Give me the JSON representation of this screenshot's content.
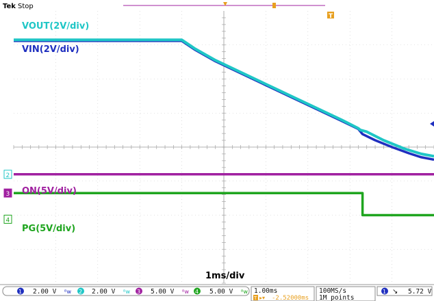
{
  "header": {
    "brand": "Tek",
    "state": "Stop"
  },
  "colors": {
    "ch1": "#1f2fbf",
    "ch2": "#1fc6c6",
    "ch3": "#a020a0",
    "ch4": "#1fa51f",
    "trigger": "#e8a020",
    "grid": "#c8c8c8"
  },
  "chart_data": {
    "type": "line",
    "title": "",
    "x_unit": "ms",
    "x_range_ms": [
      0,
      10
    ],
    "y_range_div": [
      -4,
      4
    ],
    "series": [
      {
        "name": "VOUT(2V/div)",
        "channel": 2,
        "color": "#1fc6c6",
        "points_ms_div": [
          [
            0,
            3.15
          ],
          [
            4.0,
            3.15
          ],
          [
            4.3,
            2.9
          ],
          [
            4.8,
            2.55
          ],
          [
            5.4,
            2.2
          ],
          [
            6.0,
            1.85
          ],
          [
            6.6,
            1.5
          ],
          [
            7.2,
            1.15
          ],
          [
            7.8,
            0.8
          ],
          [
            8.2,
            0.55
          ],
          [
            8.25,
            0.5
          ],
          [
            8.4,
            0.45
          ],
          [
            8.8,
            0.2
          ],
          [
            9.3,
            -0.05
          ],
          [
            9.7,
            -0.2
          ],
          [
            10,
            -0.27
          ]
        ]
      },
      {
        "name": "VIN(2V/div)",
        "channel": 1,
        "color": "#1f2fbf",
        "points_ms_div": [
          [
            0,
            3.12
          ],
          [
            4.0,
            3.12
          ],
          [
            4.3,
            2.87
          ],
          [
            4.8,
            2.52
          ],
          [
            5.4,
            2.17
          ],
          [
            6.0,
            1.82
          ],
          [
            6.6,
            1.47
          ],
          [
            7.2,
            1.12
          ],
          [
            7.8,
            0.77
          ],
          [
            8.2,
            0.53
          ],
          [
            8.3,
            0.38
          ],
          [
            8.6,
            0.2
          ],
          [
            9.0,
            0
          ],
          [
            9.4,
            -0.18
          ],
          [
            9.7,
            -0.3
          ],
          [
            10,
            -0.37
          ]
        ]
      },
      {
        "name": "ON(5V/div)",
        "channel": 3,
        "color": "#a020a0",
        "points_ms_div": [
          [
            0,
            -0.8
          ],
          [
            10,
            -0.8
          ]
        ]
      },
      {
        "name": "PG(5V/div)",
        "channel": 4,
        "color": "#1fa51f",
        "points_ms_div": [
          [
            0,
            -1.35
          ],
          [
            8.3,
            -1.35
          ],
          [
            8.3,
            -2.0
          ],
          [
            10,
            -2.0
          ]
        ]
      }
    ],
    "timebase_label": "1ms/div",
    "channel_scales": [
      {
        "ch": "1",
        "scale": "2.00 V"
      },
      {
        "ch": "2",
        "scale": "2.00 V"
      },
      {
        "ch": "3",
        "scale": "5.00 V"
      },
      {
        "ch": "4",
        "scale": "5.00 V"
      }
    ],
    "ground_markers": [
      "2",
      "3",
      "4"
    ],
    "horizontal": {
      "scale": "1.00ms",
      "position": "-2.52000ms"
    },
    "acquisition": {
      "rate": "100MS/s",
      "length": "1M points"
    },
    "trigger": {
      "source": "1",
      "slope": "falling",
      "level": "5.72 V",
      "marker": "T"
    }
  }
}
